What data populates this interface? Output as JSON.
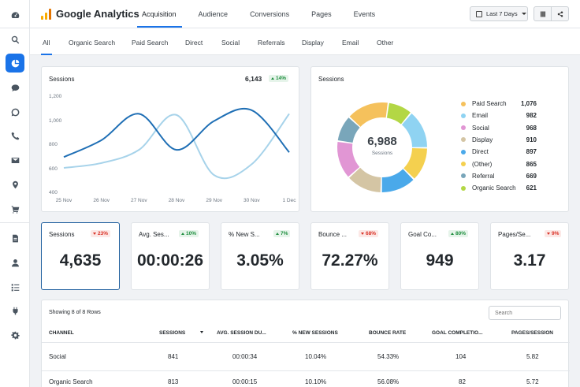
{
  "app": {
    "title": "Google Analytics"
  },
  "topnav": [
    "Acquisition",
    "Audience",
    "Conversions",
    "Pages",
    "Events"
  ],
  "date_range": {
    "label": "Last 7 Days"
  },
  "subtabs": [
    "All",
    "Organic Search",
    "Paid Search",
    "Direct",
    "Social",
    "Referrals",
    "Display",
    "Email",
    "Other"
  ],
  "sessions_chart": {
    "title": "Sessions",
    "total": "6,143",
    "change": "14%",
    "change_direction": "up"
  },
  "chart_data": {
    "type": "line",
    "x": [
      "25 Nov",
      "26 Nov",
      "27 Nov",
      "28 Nov",
      "29 Nov",
      "30 Nov",
      "1 Dec"
    ],
    "y_ticks": [
      "1,200",
      "1,000",
      "800",
      "600",
      "400"
    ],
    "ylim": [
      400,
      1200
    ],
    "series": [
      {
        "color": "#1f6fb5",
        "values": [
          700,
          840,
          1060,
          760,
          1000,
          1090,
          740
        ]
      },
      {
        "color": "#a7d3ea",
        "values": [
          610,
          650,
          760,
          1050,
          550,
          640,
          1060
        ]
      }
    ]
  },
  "donut": {
    "title": "Sessions",
    "center_value": "6,988",
    "center_label": "Sessions",
    "segments": [
      {
        "label": "Paid Search",
        "value": 1076,
        "display": "1,076",
        "color": "#f5c15c"
      },
      {
        "label": "Email",
        "value": 982,
        "display": "982",
        "color": "#8fd3f2"
      },
      {
        "label": "Social",
        "value": 968,
        "display": "968",
        "color": "#e196d4"
      },
      {
        "label": "Display",
        "value": 910,
        "display": "910",
        "color": "#d4c5a4"
      },
      {
        "label": "Direct",
        "value": 897,
        "display": "897",
        "color": "#4aa9ea"
      },
      {
        "label": "(Other)",
        "value": 865,
        "display": "865",
        "color": "#f4d04f"
      },
      {
        "label": "Referral",
        "value": 669,
        "display": "669",
        "color": "#79a6ba"
      },
      {
        "label": "Organic Search",
        "value": 621,
        "display": "621",
        "color": "#b3d745"
      }
    ],
    "ring_order": [
      "Display",
      "Social",
      "Referral",
      "Paid Search",
      "Organic Search",
      "Email",
      "(Other)",
      "Direct"
    ]
  },
  "kpis": [
    {
      "title": "Sessions",
      "value": "4,635",
      "change": "23%",
      "direction": "down"
    },
    {
      "title": "Avg. Ses...",
      "value": "00:00:26",
      "change": "10%",
      "direction": "up"
    },
    {
      "title": "% New S...",
      "value": "3.05%",
      "change": "7%",
      "direction": "up"
    },
    {
      "title": "Bounce ...",
      "value": "72.27%",
      "change": "68%",
      "direction": "down"
    },
    {
      "title": "Goal Co...",
      "value": "949",
      "change": "80%",
      "direction": "up"
    },
    {
      "title": "Pages/Se...",
      "value": "3.17",
      "change": "9%",
      "direction": "down"
    }
  ],
  "table": {
    "info": "Showing 8 of 8 Rows",
    "search_placeholder": "Search",
    "headers": [
      "CHANNEL",
      "SESSIONS",
      "AVG. SESSION DU...",
      "% NEW SESSIONS",
      "BOUNCE RATE",
      "GOAL COMPLETIO...",
      "PAGES/SESSION"
    ],
    "rows": [
      [
        "Social",
        "841",
        "00:00:34",
        "10.04%",
        "54.33%",
        "104",
        "5.82"
      ],
      [
        "Organic Search",
        "813",
        "00:00:15",
        "10.10%",
        "56.08%",
        "82",
        "5.72"
      ]
    ]
  },
  "colors": {
    "accent": "#1a73e8",
    "up": "#1e8e3e",
    "down": "#d93025"
  }
}
